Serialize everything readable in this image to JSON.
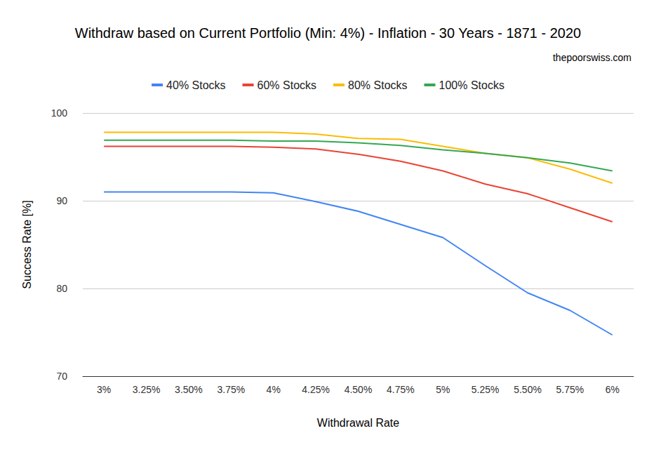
{
  "chart_data": {
    "type": "line",
    "title": "Withdraw based on Current Portfolio (Min: 4%) - Inflation - 30 Years - 1871 - 2020",
    "subtitle": "thepoorswiss.com",
    "x_label": "Withdrawal Rate",
    "y_label": "Success Rate [%]",
    "categories": [
      "3%",
      "3.25%",
      "3.50%",
      "3.75%",
      "4%",
      "4.25%",
      "4.50%",
      "4.75%",
      "5%",
      "5.25%",
      "5.50%",
      "5.75%",
      "6%"
    ],
    "series": [
      {
        "name": "40% Stocks",
        "color": "#4285f4",
        "values": [
          91.0,
          91.0,
          91.0,
          91.0,
          90.9,
          89.9,
          88.8,
          87.3,
          85.8,
          82.6,
          79.5,
          77.5,
          74.7
        ]
      },
      {
        "name": "60% Stocks",
        "color": "#ea4335",
        "values": [
          96.2,
          96.2,
          96.2,
          96.2,
          96.1,
          95.9,
          95.3,
          94.5,
          93.4,
          91.9,
          90.8,
          89.2,
          87.6
        ]
      },
      {
        "name": "80% Stocks",
        "color": "#fbbc04",
        "values": [
          97.8,
          97.8,
          97.8,
          97.8,
          97.8,
          97.6,
          97.1,
          97.0,
          96.2,
          95.4,
          94.9,
          93.6,
          92.0
        ]
      },
      {
        "name": "100% Stocks",
        "color": "#34a853",
        "values": [
          96.9,
          96.9,
          96.9,
          96.9,
          96.8,
          96.8,
          96.6,
          96.3,
          95.8,
          95.4,
          94.9,
          94.3,
          93.4
        ]
      }
    ],
    "ylim": [
      70,
      100
    ],
    "yticks": [
      70,
      80,
      90,
      100
    ],
    "grid": true,
    "legend": "top",
    "marker": "none"
  }
}
